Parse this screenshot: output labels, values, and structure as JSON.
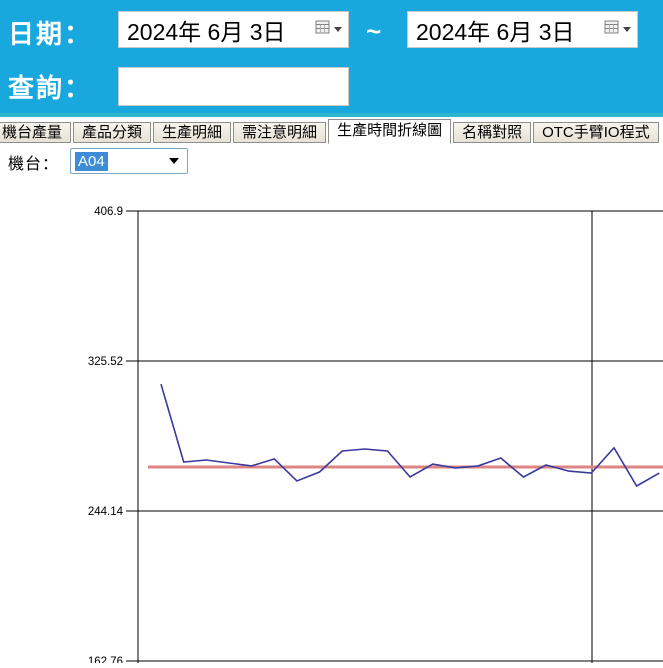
{
  "header": {
    "date_label": "日期：",
    "range_separator": "~",
    "date_from": "2024年  6月  3日",
    "date_to": "2024年  6月  3日",
    "query_label": "查詢：",
    "query_value": "",
    "colors": {
      "background": "#19A8DE",
      "accent_strip": "#2FB6CE"
    }
  },
  "tabs": [
    {
      "label": "機台產量",
      "active": false
    },
    {
      "label": "產品分類",
      "active": false
    },
    {
      "label": "生產明細",
      "active": false
    },
    {
      "label": "需注意明細",
      "active": false
    },
    {
      "label": "生產時間折線圖",
      "active": true
    },
    {
      "label": "名稱對照",
      "active": false
    },
    {
      "label": "OTC手臂IO程式",
      "active": false
    }
  ],
  "machine_selector": {
    "label": "機台：",
    "selected_option": "A04",
    "selection_color": "#3c8cd8"
  },
  "chart_data": {
    "type": "line",
    "title": "",
    "xlabel": "",
    "ylabel": "",
    "grid": true,
    "legend": "none",
    "y_ticks": [
      406.9,
      325.52,
      244.14,
      162.76
    ],
    "y_tick_interval": 81.38,
    "ylim_visible_top": 406.9,
    "series": [
      {
        "name": "production-time",
        "color": "#3A3A9C",
        "values": [
          313.0,
          270.7,
          271.8,
          270.2,
          268.6,
          272.4,
          260.4,
          265.3,
          276.7,
          277.8,
          276.7,
          262.6,
          269.6,
          267.5,
          268.6,
          272.9,
          262.6,
          269.1,
          265.8,
          264.7,
          278.4,
          257.7,
          264.7
        ]
      }
    ],
    "reference_line": {
      "value": 268.0,
      "color": "#DD8585"
    },
    "axis_color": "#000000"
  }
}
